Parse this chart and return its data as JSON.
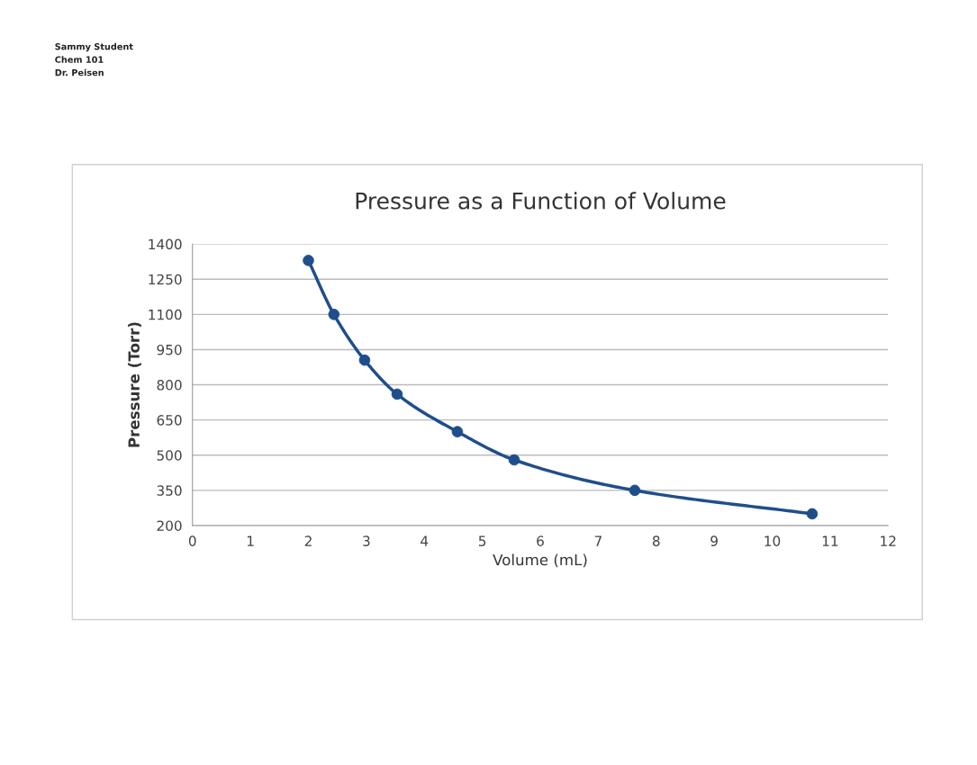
{
  "chart_data": {
    "type": "line",
    "title": "Pressure as a Function of Volume",
    "xlabel": "Volume (mL)",
    "ylabel": "Pressure (Torr)",
    "annotations": [
      "Sammy Student",
      "Chem 101",
      "Dr. Peisen"
    ],
    "series": [
      {
        "color": "#1f4e8c",
        "x": [
          2.0,
          2.44,
          2.97,
          3.53,
          4.57,
          5.55,
          7.63,
          10.69
        ],
        "values": [
          1330,
          1100,
          905,
          760,
          600,
          480,
          350,
          250
        ]
      }
    ],
    "xlim": [
      0,
      12
    ],
    "xticks": [
      0,
      1,
      2,
      3,
      4,
      5,
      6,
      7,
      8,
      9,
      10,
      11,
      12
    ],
    "ylim": [
      200,
      1400
    ],
    "yticks": [
      200,
      350,
      500,
      650,
      800,
      950,
      1100,
      1250,
      1400
    ],
    "grid": "y",
    "legend": false,
    "marker": "circle",
    "line_style": "solid"
  }
}
